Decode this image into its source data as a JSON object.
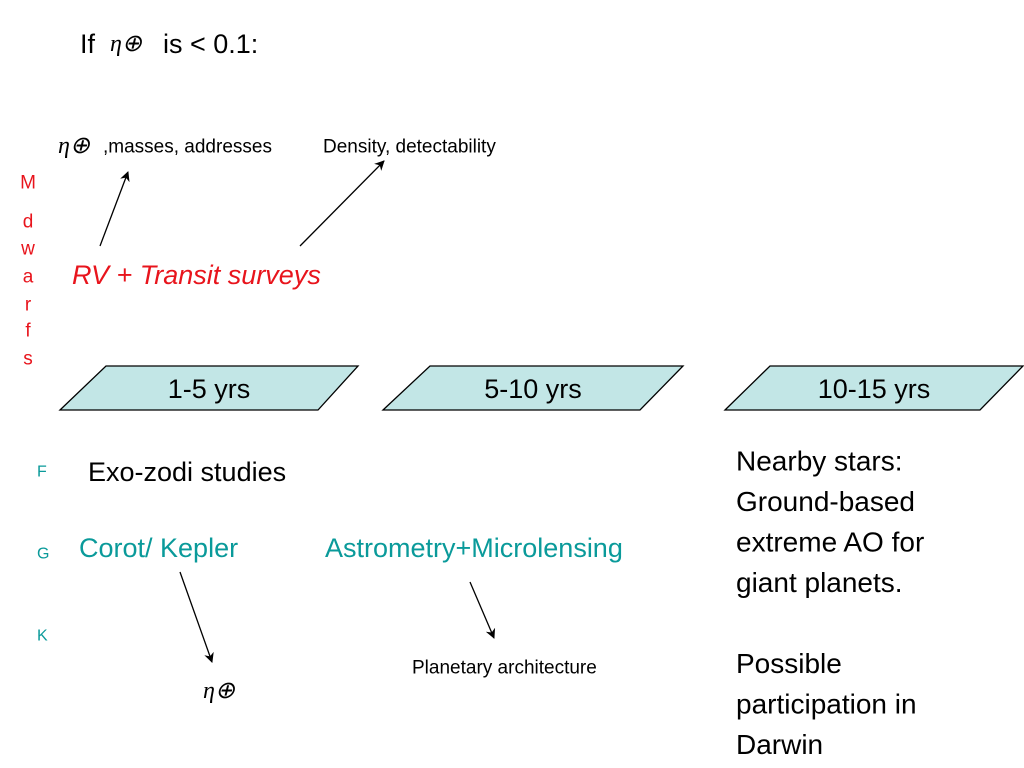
{
  "title": {
    "prefix": "If",
    "symbol": "η⊕",
    "suffix": "is < 0.1:"
  },
  "top_labels": {
    "symbol": "η⊕",
    "masses": ",masses, addresses",
    "density": "Density, detectability"
  },
  "side_label": [
    "M",
    "d",
    "w",
    "a",
    "r",
    "f",
    "s"
  ],
  "surveys": "RV  +  Transit surveys",
  "timeline": [
    "1-5 yrs",
    "5-10 yrs",
    "10-15 yrs"
  ],
  "star_types": [
    "F",
    "G",
    "K"
  ],
  "exo_zodi": "Exo-zodi studies",
  "corot": "Corot/ Kepler",
  "astrometry": "Astrometry+Microlensing",
  "planetary": "Planetary architecture",
  "bottom_symbol": "η⊕",
  "right_text": [
    [
      "Nearby stars:",
      "Ground-based",
      "extreme AO for",
      "giant planets."
    ],
    [
      "Possible",
      "participation in",
      "Darwin"
    ]
  ]
}
